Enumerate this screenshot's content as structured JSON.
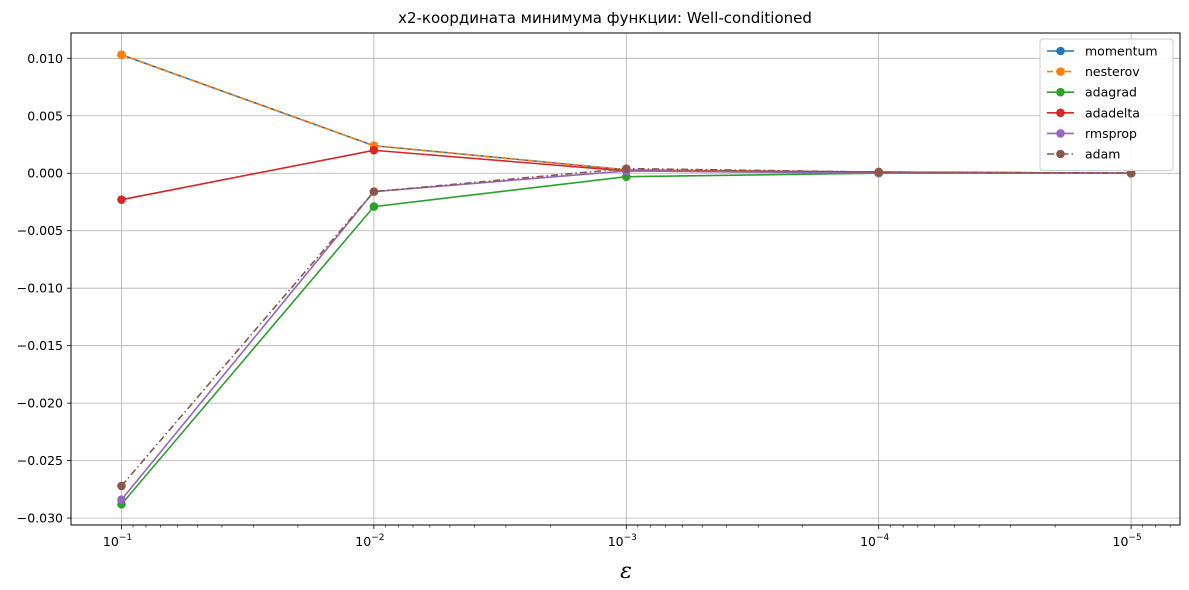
{
  "chart_data": {
    "type": "line",
    "title": "x2-координата минимума функции: Well-conditioned",
    "xlabel": "ε",
    "ylabel": "",
    "x_scale": "log",
    "x_reversed": true,
    "x": [
      0.1,
      0.01,
      0.001,
      0.0001,
      1e-05
    ],
    "x_tick_labels": [
      {
        "base": "10",
        "exp": "−1"
      },
      {
        "base": "10",
        "exp": "−2"
      },
      {
        "base": "10",
        "exp": "−3"
      },
      {
        "base": "10",
        "exp": "−4"
      },
      {
        "base": "10",
        "exp": "−5"
      }
    ],
    "ylim": [
      -0.0306,
      0.0122
    ],
    "y_ticks": [
      0.01,
      0.005,
      0.0,
      -0.005,
      -0.01,
      -0.015,
      -0.02,
      -0.025,
      -0.03
    ],
    "y_tick_labels": [
      "0.010",
      "0.005",
      "0.000",
      "−0.005",
      "−0.010",
      "−0.015",
      "−0.020",
      "−0.025",
      "−0.030"
    ],
    "grid": true,
    "legend_position": "top-right",
    "series": [
      {
        "name": "momentum",
        "color": "#1f77b4",
        "dash": "solid",
        "values": [
          0.0103,
          0.0024,
          0.0003,
          0.0001,
          0.0
        ]
      },
      {
        "name": "nesterov",
        "color": "#ff7f0e",
        "dash": "dashed",
        "values": [
          0.0103,
          0.0024,
          0.0003,
          0.0001,
          0.0
        ]
      },
      {
        "name": "adagrad",
        "color": "#2ca02c",
        "dash": "solid",
        "values": [
          -0.0288,
          -0.0029,
          -0.0003,
          0.0,
          0.0
        ]
      },
      {
        "name": "adadelta",
        "color": "#d62728",
        "dash": "solid",
        "values": [
          -0.0023,
          0.002,
          0.0002,
          0.0001,
          0.0
        ]
      },
      {
        "name": "rmsprop",
        "color": "#9467bd",
        "dash": "solid",
        "values": [
          -0.0284,
          -0.0016,
          0.0002,
          0.0,
          0.0
        ]
      },
      {
        "name": "adam",
        "color": "#8c564b",
        "dash": "dashdot",
        "values": [
          -0.0272,
          -0.0016,
          0.0004,
          0.0001,
          0.0
        ]
      }
    ]
  }
}
